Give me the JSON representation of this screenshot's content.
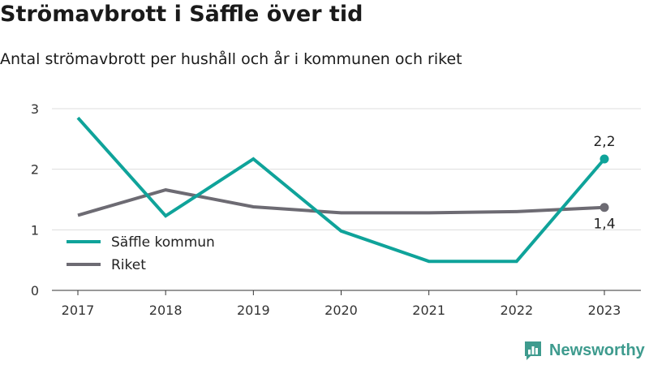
{
  "header": {
    "title": "Strömavbrott i Säffle över tid",
    "subtitle": "Antal strömavbrott per hushåll och år i kommunen och riket"
  },
  "brand": {
    "name": "Newsworthy",
    "icon": "bar-chart-logo-icon",
    "color": "#3e9b8e"
  },
  "chart_data": {
    "type": "line",
    "title": "Strömavbrott i Säffle över tid",
    "subtitle": "Antal strömavbrott per hushåll och år i kommunen och riket",
    "xlabel": "",
    "ylabel": "",
    "x": [
      "2017",
      "2018",
      "2019",
      "2020",
      "2021",
      "2022",
      "2023"
    ],
    "ylim": [
      0,
      3
    ],
    "yticks": [
      "0",
      "1",
      "2",
      "3"
    ],
    "grid": true,
    "legend": "bottom-left",
    "series": [
      {
        "name": "Säffle kommun",
        "color": "#0fa39a",
        "values": [
          2.85,
          1.23,
          2.17,
          0.98,
          0.48,
          0.48,
          2.17
        ],
        "end_label": "2,2"
      },
      {
        "name": "Riket",
        "color": "#6d6b73",
        "values": [
          1.24,
          1.66,
          1.38,
          1.28,
          1.28,
          1.3,
          1.37
        ],
        "end_label": "1,4"
      }
    ]
  }
}
